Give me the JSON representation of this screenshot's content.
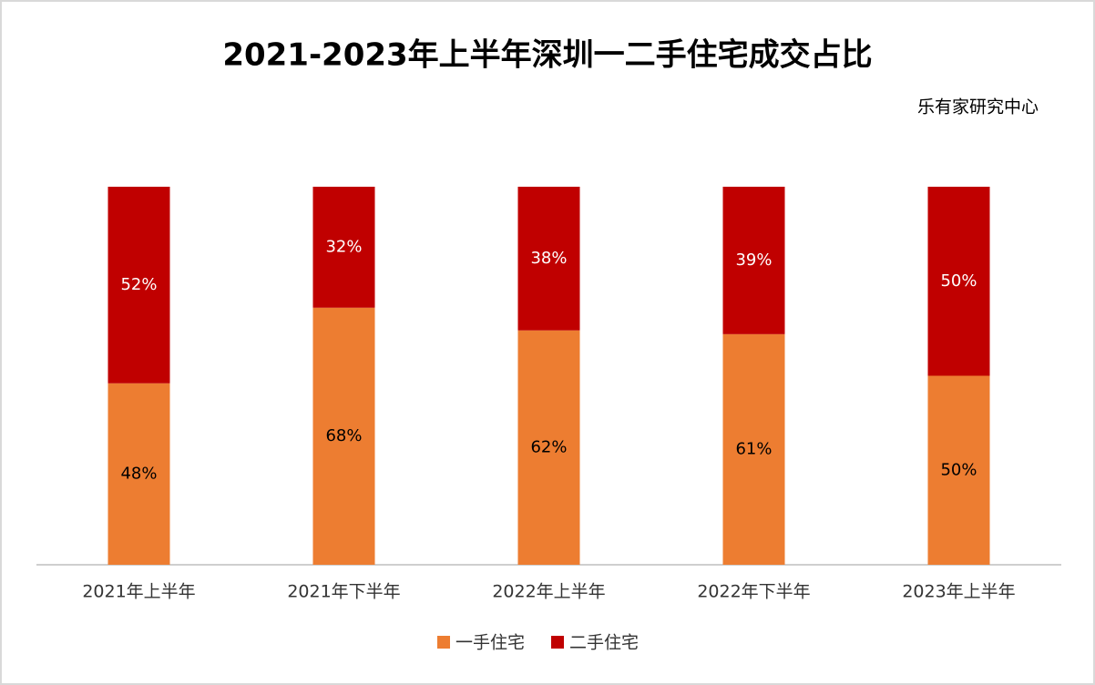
{
  "chart_data": {
    "type": "stacked_bar",
    "title": "2021-2023年上半年深圳一二手住宅成交占比",
    "subtitle": "乐有家研究中心",
    "categories": [
      "2021年上半年",
      "2021年下半年",
      "2022年上半年",
      "2022年下半年",
      "2023年上半年"
    ],
    "series": [
      {
        "name": "一手住宅",
        "color": "#ed7d31",
        "values": [
          48,
          68,
          62,
          61,
          50
        ],
        "value_labels": [
          "48%",
          "68%",
          "62%",
          "61%",
          "50%"
        ]
      },
      {
        "name": "二手住宅",
        "color": "#c00000",
        "values": [
          52,
          32,
          38,
          39,
          50
        ],
        "value_labels": [
          "52%",
          "32%",
          "38%",
          "39%",
          "50%"
        ]
      }
    ],
    "ylim": [
      0,
      100
    ],
    "legend": "bottom"
  }
}
